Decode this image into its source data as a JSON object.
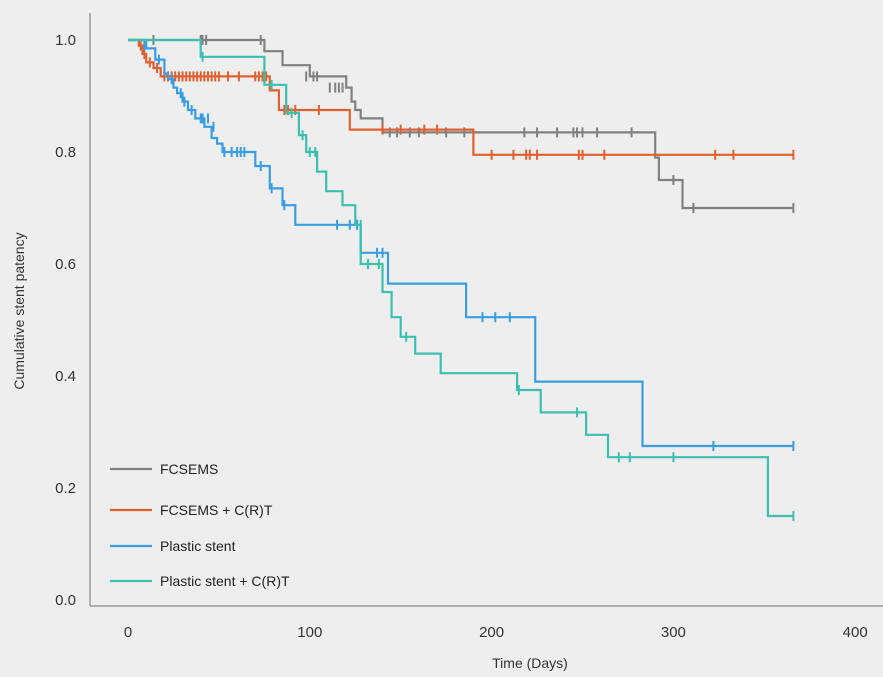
{
  "chart_data": {
    "type": "line",
    "title": "",
    "xlabel": "Time (Days)",
    "ylabel": "Cumulative stent patency",
    "xlim": [
      0,
      400
    ],
    "ylim": [
      0,
      1.0
    ],
    "x_ticks": [
      "0",
      "100",
      "200",
      "300",
      "400"
    ],
    "y_ticks": [
      "0.0",
      "0.2",
      "0.4",
      "0.6",
      "0.8",
      "1.0"
    ],
    "grid": false,
    "legend_position": "bottom-left",
    "series": [
      {
        "name": "FCSEMS",
        "color": "#808080",
        "steps": [
          [
            0,
            1.0
          ],
          [
            75,
            0.98
          ],
          [
            85,
            0.955
          ],
          [
            100,
            0.935
          ],
          [
            120,
            0.915
          ],
          [
            123,
            0.89
          ],
          [
            125,
            0.875
          ],
          [
            128,
            0.86
          ],
          [
            140,
            0.835
          ],
          [
            290,
            0.79
          ],
          [
            292,
            0.75
          ],
          [
            305,
            0.7
          ],
          [
            366,
            0.7
          ]
        ],
        "censored": [
          [
            14,
            1.0
          ],
          [
            40,
            1.0
          ],
          [
            41,
            1.0
          ],
          [
            43,
            1.0
          ],
          [
            73,
            1.0
          ],
          [
            98,
            0.935
          ],
          [
            102,
            0.935
          ],
          [
            104,
            0.935
          ],
          [
            111,
            0.915
          ],
          [
            114,
            0.915
          ],
          [
            116,
            0.915
          ],
          [
            118,
            0.915
          ],
          [
            144,
            0.835
          ],
          [
            148,
            0.835
          ],
          [
            155,
            0.835
          ],
          [
            160,
            0.835
          ],
          [
            175,
            0.835
          ],
          [
            185,
            0.835
          ],
          [
            218,
            0.835
          ],
          [
            225,
            0.835
          ],
          [
            236,
            0.835
          ],
          [
            245,
            0.835
          ],
          [
            247,
            0.835
          ],
          [
            250,
            0.835
          ],
          [
            258,
            0.835
          ],
          [
            277,
            0.835
          ],
          [
            300,
            0.75
          ],
          [
            311,
            0.7
          ],
          [
            366,
            0.7
          ]
        ]
      },
      {
        "name": "FCSEMS + C(R)T",
        "color": "#e06030",
        "steps": [
          [
            0,
            1.0
          ],
          [
            6,
            0.99
          ],
          [
            8,
            0.975
          ],
          [
            10,
            0.96
          ],
          [
            14,
            0.95
          ],
          [
            18,
            0.935
          ],
          [
            78,
            0.91
          ],
          [
            83,
            0.875
          ],
          [
            122,
            0.84
          ],
          [
            190,
            0.795
          ],
          [
            366,
            0.795
          ]
        ],
        "censored": [
          [
            7,
            0.99
          ],
          [
            9,
            0.975
          ],
          [
            12,
            0.96
          ],
          [
            16,
            0.95
          ],
          [
            20,
            0.935
          ],
          [
            22,
            0.935
          ],
          [
            24,
            0.935
          ],
          [
            26,
            0.935
          ],
          [
            28,
            0.935
          ],
          [
            30,
            0.935
          ],
          [
            32,
            0.935
          ],
          [
            34,
            0.935
          ],
          [
            36,
            0.935
          ],
          [
            38,
            0.935
          ],
          [
            40,
            0.935
          ],
          [
            42,
            0.935
          ],
          [
            44,
            0.935
          ],
          [
            46,
            0.935
          ],
          [
            48,
            0.935
          ],
          [
            50,
            0.935
          ],
          [
            55,
            0.935
          ],
          [
            61,
            0.935
          ],
          [
            70,
            0.935
          ],
          [
            72,
            0.935
          ],
          [
            74,
            0.935
          ],
          [
            76,
            0.935
          ],
          [
            86,
            0.875
          ],
          [
            88,
            0.875
          ],
          [
            92,
            0.875
          ],
          [
            105,
            0.875
          ],
          [
            140,
            0.84
          ],
          [
            150,
            0.84
          ],
          [
            163,
            0.84
          ],
          [
            170,
            0.84
          ],
          [
            200,
            0.795
          ],
          [
            212,
            0.795
          ],
          [
            219,
            0.795
          ],
          [
            221,
            0.795
          ],
          [
            225,
            0.795
          ],
          [
            248,
            0.795
          ],
          [
            250,
            0.795
          ],
          [
            262,
            0.795
          ],
          [
            323,
            0.795
          ],
          [
            333,
            0.795
          ],
          [
            366,
            0.795
          ]
        ]
      },
      {
        "name": "Plastic stent",
        "color": "#3a9de0",
        "steps": [
          [
            0,
            1.0
          ],
          [
            10,
            0.985
          ],
          [
            15,
            0.965
          ],
          [
            20,
            0.94
          ],
          [
            22,
            0.93
          ],
          [
            25,
            0.915
          ],
          [
            27,
            0.905
          ],
          [
            30,
            0.89
          ],
          [
            33,
            0.875
          ],
          [
            37,
            0.86
          ],
          [
            42,
            0.845
          ],
          [
            46,
            0.825
          ],
          [
            49,
            0.815
          ],
          [
            52,
            0.8
          ],
          [
            70,
            0.775
          ],
          [
            78,
            0.735
          ],
          [
            85,
            0.705
          ],
          [
            92,
            0.67
          ],
          [
            128,
            0.62
          ],
          [
            143,
            0.565
          ],
          [
            186,
            0.505
          ],
          [
            224,
            0.39
          ],
          [
            283,
            0.275
          ],
          [
            366,
            0.275
          ]
        ],
        "censored": [
          [
            9,
            0.99
          ],
          [
            17,
            0.965
          ],
          [
            24,
            0.93
          ],
          [
            29,
            0.905
          ],
          [
            31,
            0.89
          ],
          [
            35,
            0.875
          ],
          [
            40,
            0.86
          ],
          [
            41,
            0.86
          ],
          [
            44,
            0.86
          ],
          [
            47,
            0.845
          ],
          [
            53,
            0.8
          ],
          [
            57,
            0.8
          ],
          [
            60,
            0.8
          ],
          [
            62,
            0.8
          ],
          [
            64,
            0.8
          ],
          [
            73,
            0.775
          ],
          [
            79,
            0.735
          ],
          [
            86,
            0.705
          ],
          [
            115,
            0.67
          ],
          [
            122,
            0.67
          ],
          [
            126,
            0.67
          ],
          [
            137,
            0.62
          ],
          [
            140,
            0.62
          ],
          [
            195,
            0.505
          ],
          [
            202,
            0.505
          ],
          [
            210,
            0.505
          ],
          [
            322,
            0.275
          ],
          [
            366,
            0.275
          ]
        ]
      },
      {
        "name": "Plastic stent + C(R)T",
        "color": "#3dbfaf",
        "steps": [
          [
            0,
            1.0
          ],
          [
            40,
            0.97
          ],
          [
            75,
            0.92
          ],
          [
            87,
            0.87
          ],
          [
            94,
            0.83
          ],
          [
            98,
            0.8
          ],
          [
            104,
            0.765
          ],
          [
            109,
            0.73
          ],
          [
            118,
            0.705
          ],
          [
            125,
            0.67
          ],
          [
            128,
            0.6
          ],
          [
            140,
            0.55
          ],
          [
            145,
            0.505
          ],
          [
            150,
            0.47
          ],
          [
            158,
            0.44
          ],
          [
            172,
            0.405
          ],
          [
            214,
            0.375
          ],
          [
            227,
            0.335
          ],
          [
            252,
            0.295
          ],
          [
            264,
            0.255
          ],
          [
            352,
            0.15
          ],
          [
            366,
            0.15
          ]
        ],
        "censored": [
          [
            41,
            0.97
          ],
          [
            79,
            0.92
          ],
          [
            90,
            0.87
          ],
          [
            96,
            0.83
          ],
          [
            100,
            0.8
          ],
          [
            103,
            0.8
          ],
          [
            128,
            0.67
          ],
          [
            132,
            0.6
          ],
          [
            138,
            0.6
          ],
          [
            153,
            0.47
          ],
          [
            215,
            0.375
          ],
          [
            247,
            0.335
          ],
          [
            270,
            0.255
          ],
          [
            276,
            0.255
          ],
          [
            300,
            0.255
          ],
          [
            366,
            0.15
          ]
        ]
      }
    ]
  }
}
